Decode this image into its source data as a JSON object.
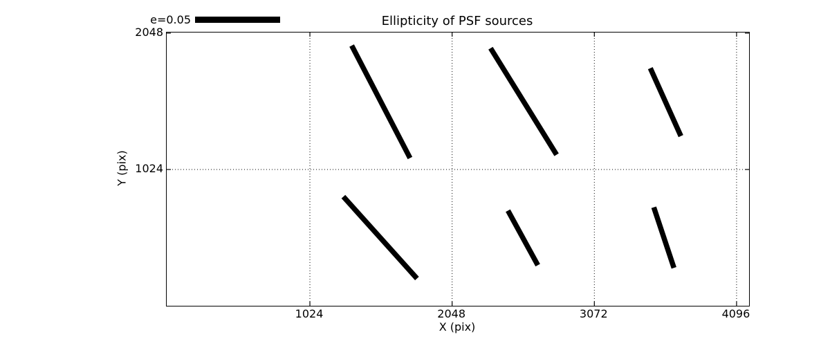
{
  "figure": {
    "title": "Ellipticity of PSF sources",
    "xlabel": "X (pix)",
    "ylabel": "Y (pix)",
    "legend_label": "e=0.05"
  },
  "chart_data": {
    "type": "line",
    "subtype": "ellipticity-whisker-plot",
    "title": "Ellipticity of PSF sources",
    "xlabel": "X (pix)",
    "ylabel": "Y (pix)",
    "xlim": [
      -7,
      4186
    ],
    "ylim": [
      0,
      2053
    ],
    "xticks": [
      1024,
      2048,
      3072,
      4096
    ],
    "yticks": [
      1024,
      2048
    ],
    "xgrid": [
      1024,
      2048,
      3072,
      4096
    ],
    "ygrid": [
      1024
    ],
    "grid_style": "dotted",
    "legend": {
      "label": "e=0.05",
      "position": "top-left",
      "scale_value": 0.05
    },
    "line_color": "#000000",
    "background_color": "#ffffff",
    "segments": [
      {
        "x1": 1325,
        "y1": 1955,
        "x2": 1745,
        "y2": 1110
      },
      {
        "x1": 2325,
        "y1": 1935,
        "x2": 2800,
        "y2": 1135
      },
      {
        "x1": 3475,
        "y1": 1785,
        "x2": 3695,
        "y2": 1275
      },
      {
        "x1": 1265,
        "y1": 820,
        "x2": 1795,
        "y2": 205
      },
      {
        "x1": 2450,
        "y1": 715,
        "x2": 2665,
        "y2": 305
      },
      {
        "x1": 3500,
        "y1": 740,
        "x2": 3645,
        "y2": 285
      }
    ]
  }
}
